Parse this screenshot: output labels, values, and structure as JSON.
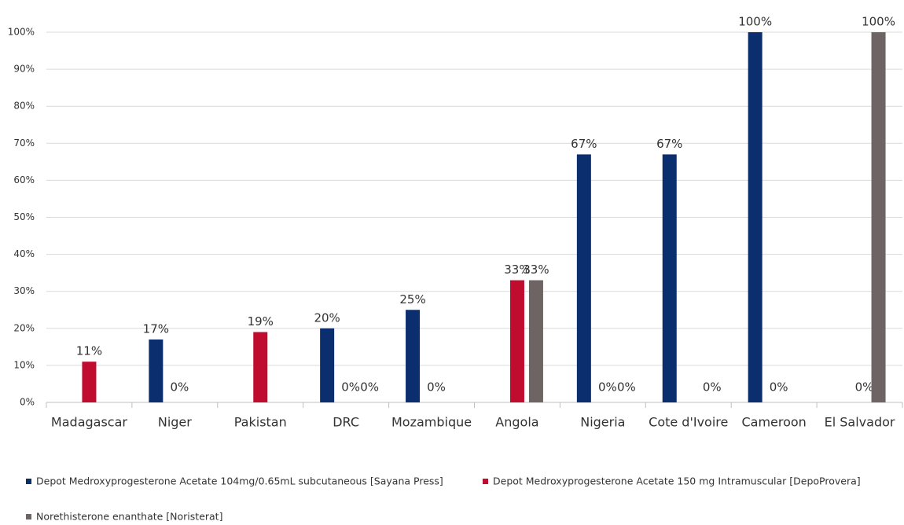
{
  "chart_data": {
    "type": "bar",
    "categories": [
      "Madagascar",
      "Niger",
      "Pakistan",
      "DRC",
      "Mozambique",
      "Angola",
      "Nigeria",
      "Cote d'Ivoire",
      "Cameroon",
      "El Salvador"
    ],
    "series": [
      {
        "name": "Depot Medroxyprogesterone Acetate 104mg/0.65mL subcutaneous [Sayana Press]",
        "color": "#0b2e6f",
        "values": [
          null,
          17,
          null,
          20,
          25,
          null,
          67,
          67,
          100,
          null
        ],
        "value_labels": [
          null,
          "17%",
          null,
          "20%",
          "25%",
          null,
          "67%",
          "67%",
          "100%",
          null
        ]
      },
      {
        "name": "Depot Medroxyprogesterone Acetate 150 mg Intramuscular [DepoProvera]",
        "color": "#c00d2f",
        "values": [
          11,
          0,
          19,
          0,
          0,
          33,
          0,
          null,
          0,
          0
        ],
        "value_labels": [
          "11%",
          "0%",
          "19%",
          "0%",
          "0%",
          "33%",
          "0%",
          null,
          "0%",
          "0%"
        ]
      },
      {
        "name": "Norethisterone enanthate [Noristerat]",
        "color": "#6e6464",
        "values": [
          null,
          null,
          null,
          0,
          null,
          33,
          0,
          0,
          null,
          100
        ],
        "value_labels": [
          null,
          null,
          null,
          "0%",
          null,
          "33%",
          "0%",
          "0%",
          null,
          "100%"
        ]
      }
    ],
    "ylim": [
      0,
      100
    ],
    "yticks": [
      {
        "value": 0,
        "label": "0%"
      },
      {
        "value": 10,
        "label": "10%"
      },
      {
        "value": 20,
        "label": "20%"
      },
      {
        "value": 30,
        "label": "30%"
      },
      {
        "value": 40,
        "label": "40%"
      },
      {
        "value": 50,
        "label": "50%"
      },
      {
        "value": 60,
        "label": "60%"
      },
      {
        "value": 70,
        "label": "70%"
      },
      {
        "value": 80,
        "label": "80%"
      },
      {
        "value": 90,
        "label": "90%"
      },
      {
        "value": 100,
        "label": "100%"
      }
    ],
    "grid": true,
    "legend": "bottom"
  }
}
